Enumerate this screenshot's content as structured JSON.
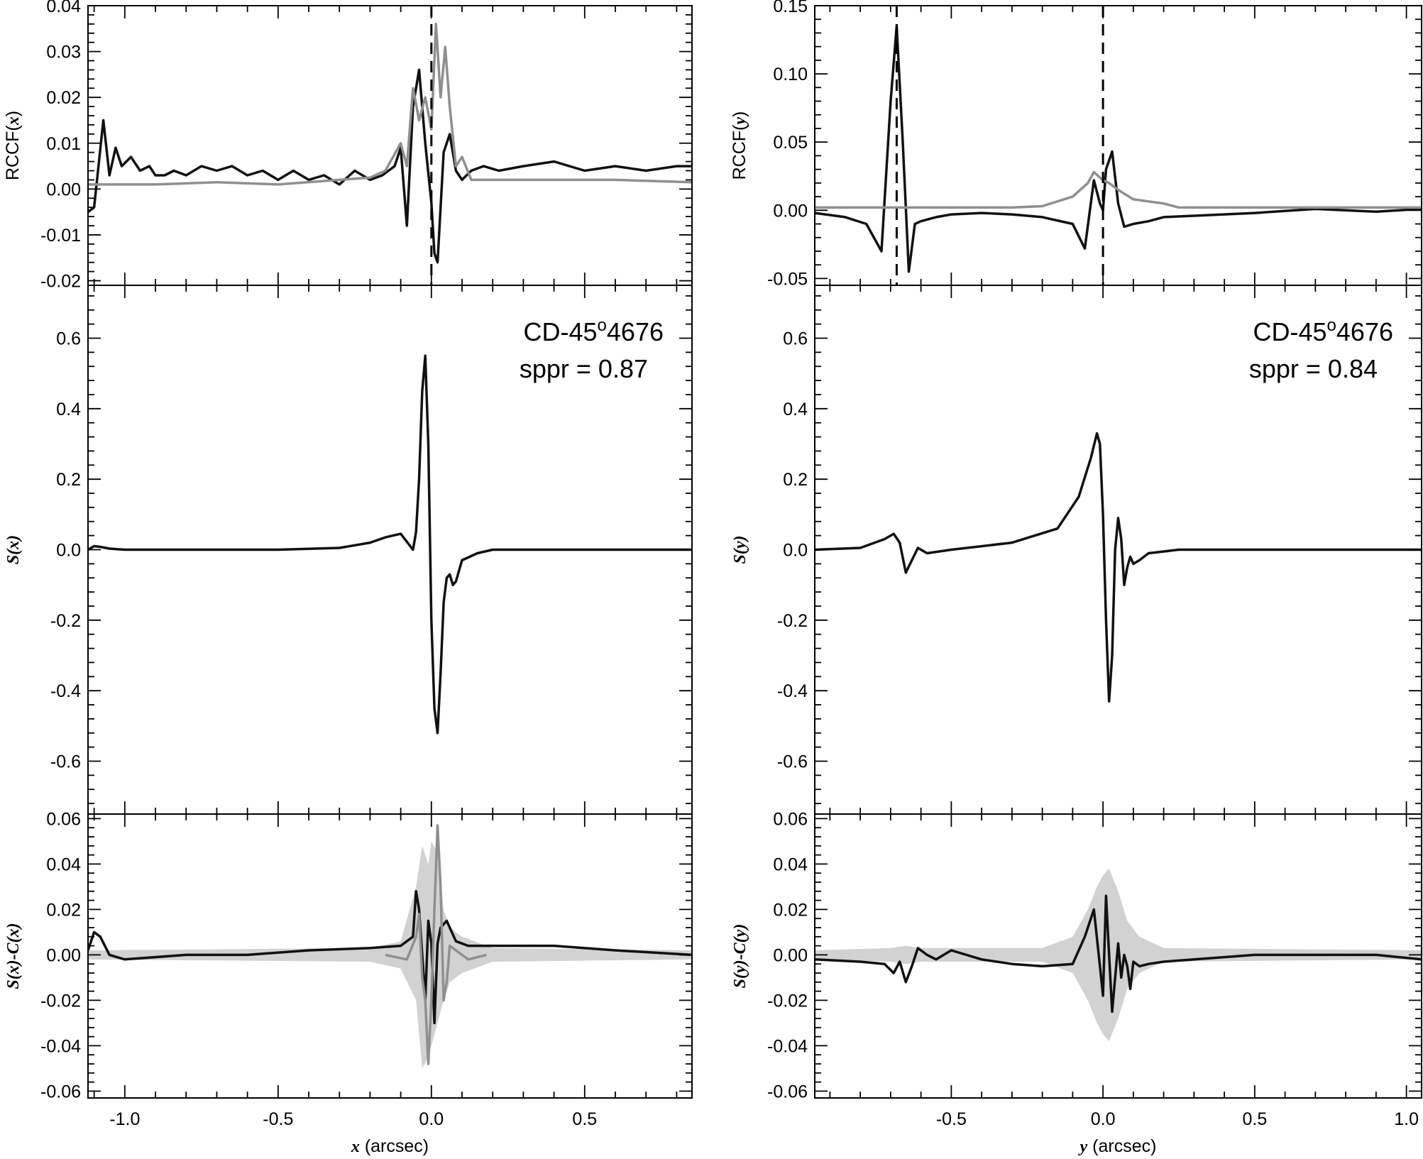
{
  "chart_data": [
    {
      "type": "line",
      "panel": "top-left",
      "ylabel": "RCCF(x)",
      "xlim": [
        -1.12,
        0.85
      ],
      "ylim": [
        -0.021,
        0.04
      ],
      "yticks": [
        "0.04",
        "0.03",
        "0.02",
        "0.01",
        "0.00",
        "-0.01",
        "-0.02"
      ],
      "ytick_values": [
        0.04,
        0.03,
        0.02,
        0.01,
        0.0,
        -0.01,
        -0.02
      ],
      "vlines": [
        0.0
      ],
      "series": [
        {
          "color": "#111111",
          "x": [
            -1.12,
            -1.1,
            -1.07,
            -1.05,
            -1.03,
            -1.01,
            -0.98,
            -0.95,
            -0.92,
            -0.9,
            -0.87,
            -0.84,
            -0.8,
            -0.75,
            -0.7,
            -0.65,
            -0.6,
            -0.55,
            -0.5,
            -0.45,
            -0.4,
            -0.35,
            -0.3,
            -0.25,
            -0.2,
            -0.16,
            -0.12,
            -0.1,
            -0.08,
            -0.06,
            -0.04,
            -0.02,
            0.0,
            0.01,
            0.02,
            0.04,
            0.06,
            0.08,
            0.1,
            0.13,
            0.17,
            0.22,
            0.3,
            0.4,
            0.5,
            0.6,
            0.7,
            0.8,
            0.85
          ],
          "y": [
            -0.005,
            -0.004,
            0.015,
            0.003,
            0.009,
            0.005,
            0.007,
            0.004,
            0.005,
            0.003,
            0.003,
            0.004,
            0.003,
            0.005,
            0.004,
            0.005,
            0.003,
            0.004,
            0.002,
            0.004,
            0.002,
            0.003,
            0.001,
            0.004,
            0.002,
            0.003,
            0.005,
            0.009,
            -0.008,
            0.018,
            0.026,
            0.01,
            -0.003,
            -0.014,
            -0.016,
            0.008,
            0.012,
            0.004,
            0.002,
            0.004,
            0.005,
            0.004,
            0.005,
            0.006,
            0.004,
            0.005,
            0.004,
            0.005,
            0.005
          ]
        },
        {
          "color": "#8f8f8f",
          "x": [
            -1.12,
            -0.9,
            -0.7,
            -0.5,
            -0.3,
            -0.2,
            -0.15,
            -0.1,
            -0.08,
            -0.06,
            -0.04,
            -0.02,
            0.0,
            0.015,
            0.03,
            0.045,
            0.06,
            0.08,
            0.1,
            0.13,
            0.2,
            0.4,
            0.6,
            0.85
          ],
          "y": [
            0.001,
            0.001,
            0.0015,
            0.001,
            0.002,
            0.0025,
            0.004,
            0.01,
            0.005,
            0.022,
            0.015,
            0.02,
            0.013,
            0.036,
            0.02,
            0.031,
            0.018,
            0.005,
            0.007,
            0.002,
            0.002,
            0.002,
            0.002,
            0.0015
          ]
        }
      ]
    },
    {
      "type": "line",
      "panel": "top-right",
      "ylabel": "RCCF(y)",
      "xlim": [
        -0.95,
        1.05
      ],
      "ylim": [
        -0.055,
        0.15
      ],
      "yticks": [
        "0.15",
        "0.10",
        "0.05",
        "0.00",
        "-0.05"
      ],
      "ytick_values": [
        0.15,
        0.1,
        0.05,
        0.0,
        -0.05
      ],
      "vlines": [
        -0.68,
        0.0
      ],
      "series": [
        {
          "color": "#111111",
          "x": [
            -0.95,
            -0.85,
            -0.78,
            -0.73,
            -0.7,
            -0.68,
            -0.66,
            -0.64,
            -0.62,
            -0.6,
            -0.55,
            -0.5,
            -0.4,
            -0.3,
            -0.2,
            -0.1,
            -0.06,
            -0.03,
            -0.01,
            0.0,
            0.01,
            0.03,
            0.05,
            0.07,
            0.1,
            0.15,
            0.2,
            0.3,
            0.5,
            0.7,
            0.9,
            1.05
          ],
          "y": [
            -0.002,
            -0.005,
            -0.01,
            -0.03,
            0.08,
            0.135,
            0.05,
            -0.045,
            -0.01,
            -0.008,
            -0.005,
            -0.003,
            -0.002,
            -0.003,
            -0.005,
            -0.01,
            -0.028,
            0.022,
            0.005,
            0.0,
            0.03,
            0.043,
            0.005,
            -0.012,
            -0.01,
            -0.008,
            -0.005,
            -0.004,
            -0.002,
            0.001,
            -0.001,
            0.001
          ]
        },
        {
          "color": "#8f8f8f",
          "x": [
            -0.95,
            -0.7,
            -0.5,
            -0.3,
            -0.2,
            -0.1,
            -0.05,
            -0.03,
            0.0,
            0.02,
            0.05,
            0.1,
            0.2,
            0.25,
            0.5,
            0.8,
            1.05
          ],
          "y": [
            0.002,
            0.002,
            0.002,
            0.002,
            0.003,
            0.01,
            0.02,
            0.028,
            0.022,
            0.02,
            0.015,
            0.008,
            0.005,
            0.002,
            0.002,
            0.002,
            0.002
          ]
        }
      ]
    },
    {
      "type": "line",
      "panel": "middle-left",
      "ylabel": "S(x)",
      "annotation": [
        "CD-45°4676",
        "sppr = 0.87"
      ],
      "xlim": [
        -1.12,
        0.85
      ],
      "ylim": [
        -0.75,
        0.75
      ],
      "yticks": [
        "0.6",
        "0.4",
        "0.2",
        "0.0",
        "-0.2",
        "-0.4",
        "-0.6"
      ],
      "ytick_values": [
        0.6,
        0.4,
        0.2,
        0.0,
        -0.2,
        -0.4,
        -0.6
      ],
      "series": [
        {
          "color": "#111111",
          "x": [
            -1.12,
            -1.1,
            -1.08,
            -1.05,
            -1.0,
            -0.8,
            -0.5,
            -0.3,
            -0.2,
            -0.15,
            -0.1,
            -0.06,
            -0.05,
            -0.04,
            -0.03,
            -0.02,
            -0.01,
            0.0,
            0.01,
            0.02,
            0.03,
            0.04,
            0.05,
            0.06,
            0.07,
            0.08,
            0.1,
            0.15,
            0.2,
            0.4,
            0.85
          ],
          "y": [
            0.0,
            0.01,
            0.008,
            0.003,
            0.0,
            0.0,
            0.0,
            0.005,
            0.02,
            0.035,
            0.045,
            0.0,
            0.05,
            0.2,
            0.45,
            0.55,
            0.3,
            -0.2,
            -0.45,
            -0.52,
            -0.35,
            -0.15,
            -0.08,
            -0.07,
            -0.1,
            -0.09,
            -0.03,
            -0.01,
            0.0,
            0.0,
            0.0
          ]
        }
      ]
    },
    {
      "type": "line",
      "panel": "middle-right",
      "ylabel": "S(y)",
      "annotation": [
        "CD-45°4676",
        "sppr = 0.84"
      ],
      "xlim": [
        -0.95,
        1.05
      ],
      "ylim": [
        -0.75,
        0.75
      ],
      "yticks": [
        "0.6",
        "0.4",
        "0.2",
        "0.0",
        "-0.2",
        "-0.4",
        "-0.6"
      ],
      "ytick_values": [
        0.6,
        0.4,
        0.2,
        0.0,
        -0.2,
        -0.4,
        -0.6
      ],
      "series": [
        {
          "color": "#111111",
          "x": [
            -0.95,
            -0.8,
            -0.72,
            -0.69,
            -0.67,
            -0.65,
            -0.63,
            -0.61,
            -0.58,
            -0.5,
            -0.3,
            -0.15,
            -0.08,
            -0.04,
            -0.02,
            -0.01,
            0.0,
            0.01,
            0.02,
            0.03,
            0.04,
            0.05,
            0.06,
            0.07,
            0.08,
            0.09,
            0.1,
            0.12,
            0.15,
            0.25,
            0.5,
            1.05
          ],
          "y": [
            0.0,
            0.005,
            0.03,
            0.045,
            0.02,
            -0.065,
            -0.03,
            0.005,
            -0.01,
            0.0,
            0.02,
            0.06,
            0.15,
            0.26,
            0.33,
            0.3,
            0.1,
            -0.2,
            -0.43,
            -0.3,
            0.0,
            0.09,
            0.03,
            -0.1,
            -0.05,
            -0.02,
            -0.04,
            -0.03,
            -0.01,
            0.0,
            0.0,
            0.0
          ]
        }
      ]
    },
    {
      "type": "line",
      "panel": "bottom-left",
      "ylabel": "S(x)-C(x)",
      "xlabel": "x (arcsec)",
      "xlim": [
        -1.12,
        0.85
      ],
      "ylim": [
        -0.063,
        0.062
      ],
      "xticks": [
        "-1.0",
        "-0.5",
        "0.0",
        "0.5"
      ],
      "xtick_values": [
        -1.0,
        -0.5,
        0.0,
        0.5
      ],
      "yticks": [
        "0.06",
        "0.04",
        "0.02",
        "0.00",
        "-0.02",
        "-0.04",
        "-0.06"
      ],
      "ytick_values": [
        0.06,
        0.04,
        0.02,
        0.0,
        -0.02,
        -0.04,
        -0.06
      ],
      "band": {
        "color": "#d2d2d2",
        "x": [
          -1.12,
          -0.2,
          -0.1,
          -0.05,
          -0.03,
          -0.01,
          0.0,
          0.02,
          0.04,
          0.06,
          0.1,
          0.2,
          0.85
        ],
        "upper": [
          0.002,
          0.003,
          0.006,
          0.03,
          0.048,
          0.04,
          0.05,
          0.045,
          0.02,
          0.012,
          0.008,
          0.003,
          0.002
        ],
        "lower": [
          -0.002,
          -0.003,
          -0.006,
          -0.02,
          -0.05,
          -0.045,
          -0.04,
          -0.03,
          -0.02,
          -0.012,
          -0.008,
          -0.003,
          -0.002
        ]
      },
      "series": [
        {
          "color": "#111111",
          "x": [
            -1.12,
            -1.1,
            -1.08,
            -1.05,
            -1.0,
            -0.8,
            -0.6,
            -0.4,
            -0.2,
            -0.1,
            -0.06,
            -0.05,
            -0.04,
            -0.03,
            -0.02,
            -0.01,
            0.0,
            0.01,
            0.02,
            0.03,
            0.05,
            0.08,
            0.12,
            0.2,
            0.4,
            0.6,
            0.85
          ],
          "y": [
            0.002,
            0.01,
            0.008,
            0.0,
            -0.002,
            0.0,
            0.0,
            0.002,
            0.003,
            0.004,
            0.008,
            0.028,
            0.02,
            0.0,
            -0.02,
            0.015,
            0.005,
            -0.03,
            0.005,
            0.012,
            0.015,
            0.006,
            0.004,
            0.004,
            0.004,
            0.002,
            0.0
          ]
        },
        {
          "color": "#8f8f8f",
          "x": [
            -0.15,
            -0.08,
            -0.05,
            -0.04,
            -0.03,
            -0.02,
            -0.01,
            0.0,
            0.01,
            0.02,
            0.03,
            0.04,
            0.05,
            0.06,
            0.08,
            0.12,
            0.18
          ],
          "y": [
            0.0,
            -0.002,
            0.008,
            0.018,
            -0.01,
            -0.02,
            -0.048,
            -0.02,
            0.02,
            0.057,
            0.03,
            -0.02,
            -0.012,
            0.004,
            0.002,
            -0.002,
            0.0
          ]
        }
      ]
    },
    {
      "type": "line",
      "panel": "bottom-right",
      "ylabel": "S(y)-C(y)",
      "xlabel": "y (arcsec)",
      "xlim": [
        -0.95,
        1.05
      ],
      "ylim": [
        -0.063,
        0.062
      ],
      "xticks": [
        "-0.5",
        "0.0",
        "0.5",
        "1.0"
      ],
      "xtick_values": [
        -0.5,
        0.0,
        0.5,
        1.0
      ],
      "yticks": [
        "0.06",
        "0.04",
        "0.02",
        "0.00",
        "-0.02",
        "-0.04",
        "-0.06"
      ],
      "ytick_values": [
        0.06,
        0.04,
        0.02,
        0.0,
        -0.02,
        -0.04,
        -0.06
      ],
      "band": {
        "color": "#d2d2d2",
        "x": [
          -0.95,
          -0.7,
          -0.65,
          -0.6,
          -0.2,
          -0.1,
          -0.05,
          -0.02,
          0.0,
          0.02,
          0.05,
          0.08,
          0.12,
          0.2,
          1.05
        ],
        "upper": [
          0.002,
          0.003,
          0.004,
          0.003,
          0.003,
          0.008,
          0.02,
          0.03,
          0.035,
          0.038,
          0.028,
          0.015,
          0.008,
          0.003,
          0.002
        ],
        "lower": [
          -0.002,
          -0.003,
          -0.004,
          -0.003,
          -0.003,
          -0.008,
          -0.02,
          -0.03,
          -0.035,
          -0.038,
          -0.028,
          -0.015,
          -0.008,
          -0.003,
          -0.002
        ]
      },
      "series": [
        {
          "color": "#111111",
          "x": [
            -0.95,
            -0.8,
            -0.72,
            -0.69,
            -0.67,
            -0.65,
            -0.63,
            -0.61,
            -0.58,
            -0.55,
            -0.5,
            -0.4,
            -0.3,
            -0.2,
            -0.1,
            -0.06,
            -0.03,
            -0.01,
            0.0,
            0.01,
            0.02,
            0.03,
            0.05,
            0.06,
            0.07,
            0.08,
            0.09,
            0.1,
            0.12,
            0.15,
            0.2,
            0.5,
            0.9,
            1.05
          ],
          "y": [
            -0.002,
            -0.003,
            -0.004,
            -0.008,
            -0.003,
            -0.012,
            -0.005,
            0.003,
            0.0,
            -0.002,
            0.002,
            -0.002,
            -0.004,
            -0.005,
            -0.004,
            0.008,
            0.02,
            -0.005,
            -0.018,
            0.026,
            0.0,
            -0.025,
            0.005,
            -0.01,
            0.0,
            -0.005,
            -0.015,
            -0.003,
            -0.005,
            -0.004,
            -0.003,
            0.0,
            0.0,
            -0.002
          ]
        }
      ]
    }
  ]
}
